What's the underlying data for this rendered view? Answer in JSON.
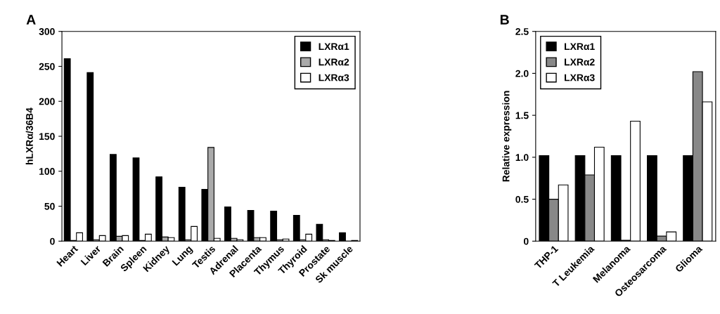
{
  "chart_data": [
    {
      "type": "bar",
      "title": "A",
      "ylabel": "hLXRα/36B4",
      "categories": [
        "Heart",
        "Liver",
        "Brain",
        "Spleen",
        "Kidney",
        "Lung",
        "Testis",
        "Adrenal",
        "Placenta",
        "Thymus",
        "Thyroid",
        "Prostate",
        "Sk muscle"
      ],
      "series": [
        {
          "name": "LXRα1",
          "color": "#000000",
          "values": [
            261,
            241,
            124,
            119,
            92,
            77,
            74,
            49,
            44,
            43,
            37,
            24,
            12
          ]
        },
        {
          "name": "LXRα2",
          "color": "#aaaaaa",
          "values": [
            1,
            2,
            7,
            1,
            6,
            2,
            134,
            4,
            5,
            2,
            2,
            2,
            0
          ]
        },
        {
          "name": "LXRα3",
          "color": "#ffffff",
          "values": [
            12,
            8,
            8,
            10,
            5,
            21,
            4,
            2,
            5,
            3,
            10,
            1,
            1
          ]
        }
      ],
      "ylim": [
        0,
        300
      ],
      "yticks": [
        0,
        50,
        100,
        150,
        200,
        250,
        300
      ],
      "legend": "top right",
      "grid": false
    },
    {
      "type": "bar",
      "title": "B",
      "ylabel": "Relative expression",
      "categories": [
        "THP-1",
        "T Leukemia",
        "Melanoma",
        "Osteosarcoma",
        "Glioma"
      ],
      "series": [
        {
          "name": "LXRα1",
          "color": "#000000",
          "values": [
            1.02,
            1.02,
            1.02,
            1.02,
            1.02
          ]
        },
        {
          "name": "LXRα2",
          "color": "#888888",
          "values": [
            0.5,
            0.79,
            0.01,
            0.06,
            2.02
          ]
        },
        {
          "name": "LXRα3",
          "color": "#ffffff",
          "values": [
            0.67,
            1.12,
            1.43,
            0.11,
            1.66
          ]
        }
      ],
      "ylim": [
        0,
        2.5
      ],
      "yticks": [
        {
          "value": 0,
          "label": "0"
        },
        0.5,
        {
          "value": 1,
          "label": "1.0"
        },
        1.5,
        {
          "value": 2,
          "label": "2.0"
        },
        2.5
      ],
      "legend": "top left",
      "grid": false
    }
  ]
}
